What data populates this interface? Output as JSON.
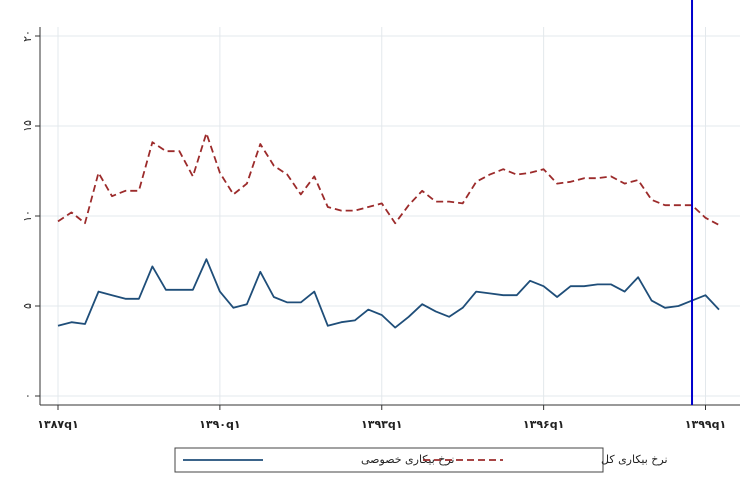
{
  "chart_data": {
    "type": "line",
    "categories": [
      "۱۳۸۷q۱",
      null,
      null,
      null,
      null,
      null,
      null,
      null,
      null,
      null,
      null,
      null,
      "۱۳۹۰q۱",
      null,
      null,
      null,
      null,
      null,
      null,
      null,
      null,
      null,
      null,
      null,
      "۱۳۹۳q۱",
      null,
      null,
      null,
      null,
      null,
      null,
      null,
      null,
      null,
      null,
      null,
      "۱۳۹۶q۱",
      null,
      null,
      null,
      null,
      null,
      null,
      null,
      null,
      null,
      null,
      null,
      "۱۳۹۹q۱",
      null
    ],
    "series": [
      {
        "name": "نرخ بیکاری خصوصی",
        "color": "#1f4e79",
        "dash": false,
        "values": [
          3.9,
          4.1,
          4.0,
          5.8,
          5.6,
          5.4,
          5.4,
          7.2,
          5.9,
          5.9,
          5.9,
          7.6,
          5.8,
          4.9,
          5.1,
          6.9,
          5.5,
          5.2,
          5.2,
          5.8,
          3.9,
          4.1,
          4.2,
          4.8,
          4.5,
          3.8,
          4.4,
          5.1,
          4.7,
          4.4,
          4.9,
          5.8,
          5.7,
          5.6,
          5.6,
          6.4,
          6.1,
          5.5,
          6.1,
          6.1,
          6.2,
          6.2,
          5.8,
          6.6,
          5.3,
          4.9,
          5.0,
          5.3,
          5.6,
          4.8
        ]
      },
      {
        "name": "نرخ بیکاری کل",
        "color": "#9c2b2b",
        "dash": true,
        "values": [
          9.7,
          10.2,
          9.6,
          12.4,
          11.1,
          11.4,
          11.4,
          14.1,
          13.6,
          13.6,
          12.2,
          14.6,
          12.4,
          11.2,
          11.8,
          14.0,
          12.8,
          12.3,
          11.2,
          12.2,
          10.5,
          10.3,
          10.3,
          10.5,
          10.7,
          9.6,
          10.6,
          11.4,
          10.8,
          10.8,
          10.7,
          11.9,
          12.3,
          12.6,
          12.3,
          12.4,
          12.6,
          11.8,
          11.9,
          12.1,
          12.1,
          12.2,
          11.8,
          12.0,
          10.9,
          10.6,
          10.6,
          10.6,
          9.9,
          9.5
        ]
      }
    ],
    "ylim": [
      -0.5,
      20.5
    ],
    "yticks": [
      {
        "value": 0,
        "label": "۰"
      },
      {
        "value": 5,
        "label": "۵"
      },
      {
        "value": 10,
        "label": "۱۰"
      },
      {
        "value": 15,
        "label": "۱۵"
      },
      {
        "value": 20,
        "label": "۲۰"
      }
    ],
    "grid": true,
    "reference_line": {
      "category_index": 47,
      "color": "#0000cc"
    },
    "legend": "bottom"
  }
}
